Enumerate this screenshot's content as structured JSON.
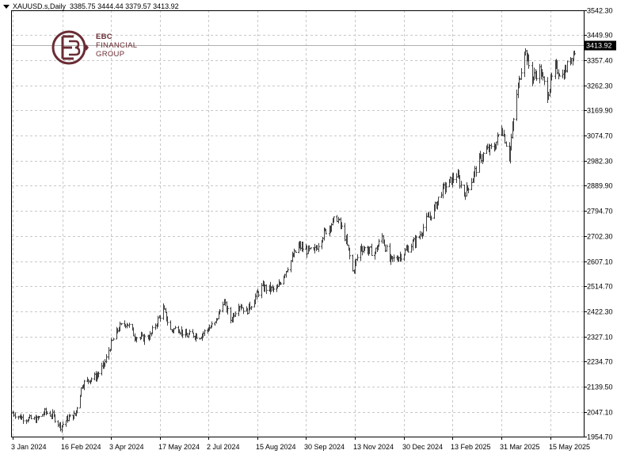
{
  "header": {
    "symbol": "XAUUSD.s,Daily",
    "ohlc": "3385.75 3444.44 3379.57 3413.92"
  },
  "logo": {
    "brand": "EBC",
    "line2": "FINANCIAL",
    "line3": "GROUP"
  },
  "colors": {
    "bars": "#404040",
    "grid": "#c8c8c8",
    "last_price_label_bg": "#000000",
    "logo": "#6a2c34"
  },
  "chart_data": {
    "type": "ohlc",
    "symbol": "XAUUSD.s",
    "timeframe": "Daily",
    "last_price": 3413.92,
    "last_price_label": "3413.92",
    "ylim": [
      1954.7,
      3542.3
    ],
    "y_ticks": [
      "3542.30",
      "3449.90",
      "3357.40",
      "3262.30",
      "3169.90",
      "3074.70",
      "2982.30",
      "2889.90",
      "2794.70",
      "2702.30",
      "2607.10",
      "2514.70",
      "2422.30",
      "2327.10",
      "2234.70",
      "2139.50",
      "2047.10",
      "1954.70"
    ],
    "x_ticks": [
      "3 Jan 2024",
      "16 Feb 2024",
      "3 Apr 2024",
      "17 May 2024",
      "2 Jul 2024",
      "15 Aug 2024",
      "30 Sep 2024",
      "13 Nov 2024",
      "30 Dec 2024",
      "13 Feb 2025",
      "31 Mar 2025",
      "15 May 2025"
    ],
    "grid": true,
    "series": [
      {
        "points": [
          [
            "3 Jan 2024",
            2043
          ],
          [
            "10 Jan 2024",
            2026
          ],
          [
            "17 Jan 2024",
            2021
          ],
          [
            "24 Jan 2024",
            2018
          ],
          [
            "31 Jan 2024",
            2046
          ],
          [
            "7 Feb 2024",
            2034
          ],
          [
            "14 Feb 2024",
            1993
          ],
          [
            "21 Feb 2024",
            2023
          ],
          [
            "28 Feb 2024",
            2035
          ],
          [
            "6 Mar 2024",
            2150
          ],
          [
            "13 Mar 2024",
            2168
          ],
          [
            "20 Mar 2024",
            2180
          ],
          [
            "27 Mar 2024",
            2222
          ],
          [
            "3 Apr 2024",
            2300
          ],
          [
            "10 Apr 2024",
            2360
          ],
          [
            "17 Apr 2024",
            2380
          ],
          [
            "24 Apr 2024",
            2330
          ],
          [
            "1 May 2024",
            2320
          ],
          [
            "8 May 2024",
            2330
          ],
          [
            "15 May 2024",
            2390
          ],
          [
            "20 May 2024",
            2430
          ],
          [
            "27 May 2024",
            2350
          ],
          [
            "3 Jun 2024",
            2360
          ],
          [
            "10 Jun 2024",
            2330
          ],
          [
            "17 Jun 2024",
            2335
          ],
          [
            "24 Jun 2024",
            2330
          ],
          [
            "1 Jul 2024",
            2355
          ],
          [
            "8 Jul 2024",
            2375
          ],
          [
            "15 Jul 2024",
            2460
          ],
          [
            "22 Jul 2024",
            2390
          ],
          [
            "29 Jul 2024",
            2450
          ],
          [
            "5 Aug 2024",
            2420
          ],
          [
            "12 Aug 2024",
            2470
          ],
          [
            "19 Aug 2024",
            2510
          ],
          [
            "26 Aug 2024",
            2505
          ],
          [
            "2 Sep 2024",
            2500
          ],
          [
            "9 Sep 2024",
            2560
          ],
          [
            "16 Sep 2024",
            2610
          ],
          [
            "23 Sep 2024",
            2665
          ],
          [
            "30 Sep 2024",
            2650
          ],
          [
            "7 Oct 2024",
            2640
          ],
          [
            "14 Oct 2024",
            2700
          ],
          [
            "21 Oct 2024",
            2740
          ],
          [
            "28 Oct 2024",
            2770
          ],
          [
            "4 Nov 2024",
            2700
          ],
          [
            "11 Nov 2024",
            2570
          ],
          [
            "18 Nov 2024",
            2660
          ],
          [
            "25 Nov 2024",
            2650
          ],
          [
            "2 Dec 2024",
            2640
          ],
          [
            "9 Dec 2024",
            2700
          ],
          [
            "16 Dec 2024",
            2610
          ],
          [
            "23 Dec 2024",
            2620
          ],
          [
            "30 Dec 2024",
            2640
          ],
          [
            "6 Jan 2025",
            2670
          ],
          [
            "13 Jan 2025",
            2700
          ],
          [
            "20 Jan 2025",
            2760
          ],
          [
            "27 Jan 2025",
            2800
          ],
          [
            "3 Feb 2025",
            2870
          ],
          [
            "10 Feb 2025",
            2900
          ],
          [
            "17 Feb 2025",
            2930
          ],
          [
            "24 Feb 2025",
            2860
          ],
          [
            "3 Mar 2025",
            2910
          ],
          [
            "10 Mar 2025",
            2985
          ],
          [
            "17 Mar 2025",
            3020
          ],
          [
            "24 Mar 2025",
            3030
          ],
          [
            "31 Mar 2025",
            3110
          ],
          [
            "7 Apr 2025",
            3000
          ],
          [
            "14 Apr 2025",
            3230
          ],
          [
            "21 Apr 2025",
            3400
          ],
          [
            "28 Apr 2025",
            3290
          ],
          [
            "5 May 2025",
            3320
          ],
          [
            "12 May 2025",
            3230
          ],
          [
            "19 May 2025",
            3330
          ],
          [
            "26 May 2025",
            3300
          ],
          [
            "2 Jun 2025",
            3360
          ],
          [
            "9 Jun 2025",
            3413.92
          ]
        ]
      }
    ]
  }
}
